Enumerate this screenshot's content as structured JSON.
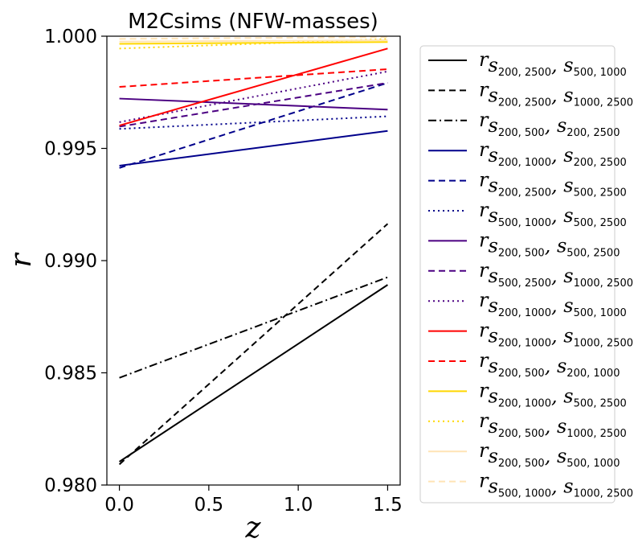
{
  "chart_data": {
    "type": "line",
    "title": "M2Csims (NFW-masses)",
    "xlabel": "z",
    "ylabel": "r",
    "xlim": [
      -0.07,
      1.57
    ],
    "ylim": [
      0.98,
      1.0
    ],
    "xticks": [
      0.0,
      0.5,
      1.0,
      1.5
    ],
    "xtick_labels": [
      "0.0",
      "0.5",
      "1.0",
      "1.5"
    ],
    "yticks": [
      0.98,
      0.985,
      0.99,
      0.995,
      1.0
    ],
    "ytick_labels": [
      "0.980",
      "0.985",
      "0.990",
      "0.995",
      "1.000"
    ],
    "legend_position": "right-outside",
    "grid": false,
    "x": [
      0.0,
      1.5
    ],
    "series": [
      {
        "name": "r_{s200,2500, s500,1000}",
        "values": [
          0.98104,
          0.98892
        ],
        "color": "#000000",
        "style": "solid",
        "legend": {
          "base": "r",
          "sub": "s",
          "s1": "200, 2500",
          "s2": "500, 1000"
        }
      },
      {
        "name": "r_{s200,2500, s1000,2500}",
        "values": [
          0.98092,
          0.99164
        ],
        "color": "#000000",
        "style": "dashed",
        "legend": {
          "base": "r",
          "sub": "s",
          "s1": "200, 2500",
          "s2": "1000, 2500"
        }
      },
      {
        "name": "r_{s200,500, s200,2500}",
        "values": [
          0.98478,
          0.98926
        ],
        "color": "#000000",
        "style": "dashdot",
        "legend": {
          "base": "r",
          "sub": "s",
          "s1": "200, 500",
          "s2": "200, 2500"
        }
      },
      {
        "name": "r_{s200,1000, s200,2500}",
        "values": [
          0.99423,
          0.99578
        ],
        "color": "#00008b",
        "style": "solid",
        "legend": {
          "base": "r",
          "sub": "s",
          "s1": "200, 1000",
          "s2": "200, 2500"
        }
      },
      {
        "name": "r_{s200,2500, s500,2500}",
        "values": [
          0.99413,
          0.99792
        ],
        "color": "#00008b",
        "style": "dashed",
        "legend": {
          "base": "r",
          "sub": "s",
          "s1": "200, 2500",
          "s2": "500, 2500"
        }
      },
      {
        "name": "r_{s500,1000, s500,2500}",
        "values": [
          0.99587,
          0.99643
        ],
        "color": "#00008b",
        "style": "dotted",
        "legend": {
          "base": "r",
          "sub": "s",
          "s1": "500, 1000",
          "s2": "500, 2500"
        }
      },
      {
        "name": "r_{s200,500, s500,2500}",
        "values": [
          0.99722,
          0.99673
        ],
        "color": "#4b0082",
        "style": "solid",
        "legend": {
          "base": "r",
          "sub": "s",
          "s1": "200, 500",
          "s2": "500, 2500"
        }
      },
      {
        "name": "r_{s500,2500, s1000,2500}",
        "values": [
          0.99597,
          0.99792
        ],
        "color": "#4b0082",
        "style": "dashed",
        "legend": {
          "base": "r",
          "sub": "s",
          "s1": "500, 2500",
          "s2": "1000, 2500"
        }
      },
      {
        "name": "r_{s200,1000, s500,1000}",
        "values": [
          0.99617,
          0.99843
        ],
        "color": "#4b0082",
        "style": "dotted",
        "legend": {
          "base": "r",
          "sub": "s",
          "s1": "200, 1000",
          "s2": "500, 1000"
        }
      },
      {
        "name": "r_{s200,1000, s1000,2500}",
        "values": [
          0.99602,
          0.99945
        ],
        "color": "#ff0000",
        "style": "solid",
        "legend": {
          "base": "r",
          "sub": "s",
          "s1": "200, 1000",
          "s2": "1000, 2500"
        }
      },
      {
        "name": "r_{s200,500, s200,1000}",
        "values": [
          0.99774,
          0.99853
        ],
        "color": "#ff0000",
        "style": "dashed",
        "legend": {
          "base": "r",
          "sub": "s",
          "s1": "200, 500",
          "s2": "200, 1000"
        }
      },
      {
        "name": "r_{s200,1000, s500,2500}",
        "values": [
          0.99966,
          0.99974
        ],
        "color": "#ffd700",
        "style": "solid",
        "legend": {
          "base": "r",
          "sub": "s",
          "s1": "200, 1000",
          "s2": "500, 2500"
        }
      },
      {
        "name": "r_{s200,500, s1000,2500}",
        "values": [
          0.99945,
          0.99987
        ],
        "color": "#ffd700",
        "style": "dotted",
        "legend": {
          "base": "r",
          "sub": "s",
          "s1": "200, 500",
          "s2": "1000, 2500"
        }
      },
      {
        "name": "r_{s200,500, s500,1000}",
        "values": [
          0.99976,
          0.99982
        ],
        "color": "#ffe4b5",
        "style": "solid",
        "legend": {
          "base": "r",
          "sub": "s",
          "s1": "200, 500",
          "s2": "500, 1000"
        }
      },
      {
        "name": "r_{s500,1000, s1000,2500}",
        "values": [
          0.99988,
          0.99996
        ],
        "color": "#ffe4b5",
        "style": "dashed",
        "legend": {
          "base": "r",
          "sub": "s",
          "s1": "500, 1000",
          "s2": "1000, 2500"
        }
      }
    ]
  }
}
